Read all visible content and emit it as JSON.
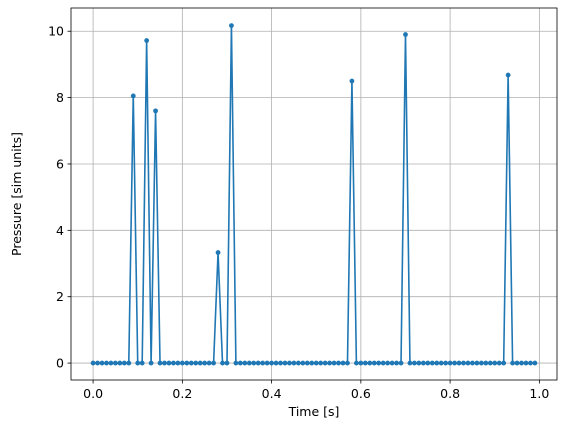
{
  "chart_data": {
    "type": "line",
    "title": "",
    "xlabel": "Time [s]",
    "ylabel": "Pressure [sim units]",
    "xlim": [
      -0.0495,
      1.0395
    ],
    "ylim": [
      -0.51,
      10.7
    ],
    "xticks": [
      0.0,
      0.2,
      0.4,
      0.6,
      0.8,
      1.0
    ],
    "xtick_labels": [
      "0.0",
      "0.2",
      "0.4",
      "0.6",
      "0.8",
      "1.0"
    ],
    "yticks": [
      0,
      2,
      4,
      6,
      8,
      10
    ],
    "ytick_labels": [
      "0",
      "2",
      "4",
      "6",
      "8",
      "10"
    ],
    "grid": true,
    "legend": "none",
    "series": [
      {
        "color": "#1f77b4",
        "marker": "circle",
        "x_start": 0.0,
        "x_step": 0.01,
        "count": 100,
        "default_y": 0,
        "spikes": [
          {
            "x": 0.09,
            "y": 8.05
          },
          {
            "x": 0.12,
            "y": 9.72
          },
          {
            "x": 0.14,
            "y": 7.6
          },
          {
            "x": 0.28,
            "y": 3.33
          },
          {
            "x": 0.31,
            "y": 10.17
          },
          {
            "x": 0.58,
            "y": 8.5
          },
          {
            "x": 0.7,
            "y": 9.9
          },
          {
            "x": 0.93,
            "y": 8.68
          }
        ]
      }
    ]
  },
  "colors": {
    "line": "#1f77b4",
    "grid": "#b0b0b0",
    "axis": "#000000"
  }
}
